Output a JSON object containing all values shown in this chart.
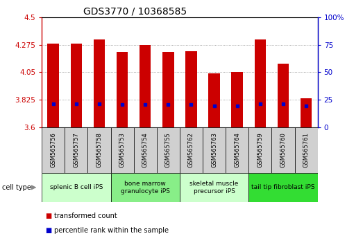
{
  "title": "GDS3770 / 10368585",
  "samples": [
    "GSM565756",
    "GSM565757",
    "GSM565758",
    "GSM565753",
    "GSM565754",
    "GSM565755",
    "GSM565762",
    "GSM565763",
    "GSM565764",
    "GSM565759",
    "GSM565760",
    "GSM565761"
  ],
  "transformed_count": [
    4.285,
    4.285,
    4.32,
    4.215,
    4.275,
    4.215,
    4.22,
    4.04,
    4.05,
    4.32,
    4.12,
    3.84
  ],
  "percentile_rank_data": [
    3.79,
    3.79,
    3.795,
    3.785,
    3.785,
    3.785,
    3.785,
    3.775,
    3.775,
    3.795,
    3.79,
    3.775
  ],
  "ymin": 3.6,
  "ymax": 4.5,
  "yticks": [
    3.6,
    3.825,
    4.05,
    4.275,
    4.5
  ],
  "ytick_labels": [
    "3.6",
    "3.825",
    "4.05",
    "4.275",
    "4.5"
  ],
  "y2ticks_pct": [
    0,
    25,
    50,
    75,
    100
  ],
  "y2tick_labels": [
    "0",
    "25",
    "50",
    "75",
    "100%"
  ],
  "bar_color": "#cc0000",
  "dot_color": "#0000cc",
  "bar_width": 0.5,
  "cell_groups": [
    {
      "label": "splenic B cell iPS",
      "start": 0,
      "end": 3,
      "color": "#ccffcc"
    },
    {
      "label": "bone marrow\ngranulocyte iPS",
      "start": 3,
      "end": 6,
      "color": "#88ee88"
    },
    {
      "label": "skeletal muscle\nprecursor iPS",
      "start": 6,
      "end": 9,
      "color": "#ccffcc"
    },
    {
      "label": "tail tip fibroblast iPS",
      "start": 9,
      "end": 12,
      "color": "#33dd33"
    }
  ],
  "legend_items": [
    {
      "label": "transformed count",
      "color": "#cc0000"
    },
    {
      "label": "percentile rank within the sample",
      "color": "#0000cc"
    }
  ],
  "cell_type_label": "cell type",
  "sample_box_color": "#d0d0d0",
  "background_color": "#ffffff",
  "grid_color": "#888888",
  "title_fontsize": 10,
  "tick_fontsize": 7.5,
  "sample_fontsize": 6,
  "group_fontsize": 6.5
}
